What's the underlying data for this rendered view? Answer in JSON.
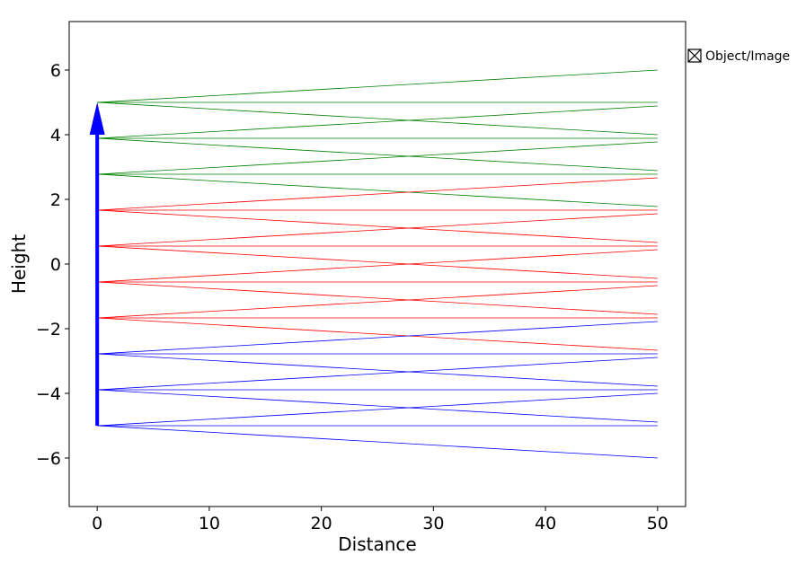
{
  "chart_data": {
    "type": "line",
    "title": "",
    "xlabel": "Distance",
    "ylabel": "Height",
    "xlim": [
      -2.5,
      52.5
    ],
    "ylim": [
      -7.5,
      7.5
    ],
    "x_ticks": [
      0,
      10,
      20,
      30,
      40,
      50
    ],
    "y_ticks": [
      -6,
      -4,
      -2,
      0,
      2,
      4,
      6
    ],
    "grid": false,
    "legend": {
      "placement": "outside-top-right",
      "entries": [
        "Object/Image"
      ]
    },
    "object_arrow": {
      "x": 0,
      "y_start": -5,
      "y_end": 5,
      "color": "#0000ff"
    },
    "ray_length": 50,
    "ray_slopes": [
      0.02,
      0,
      -0.02
    ],
    "series": [
      {
        "color": "#008000",
        "start_heights": [
          5.0,
          3.889,
          2.778
        ]
      },
      {
        "color": "#ff0000",
        "start_heights": [
          1.667,
          0.556,
          -0.556,
          -1.667
        ]
      },
      {
        "color": "#0000ff",
        "start_heights": [
          -2.778,
          -3.889,
          -5.0
        ]
      }
    ]
  }
}
